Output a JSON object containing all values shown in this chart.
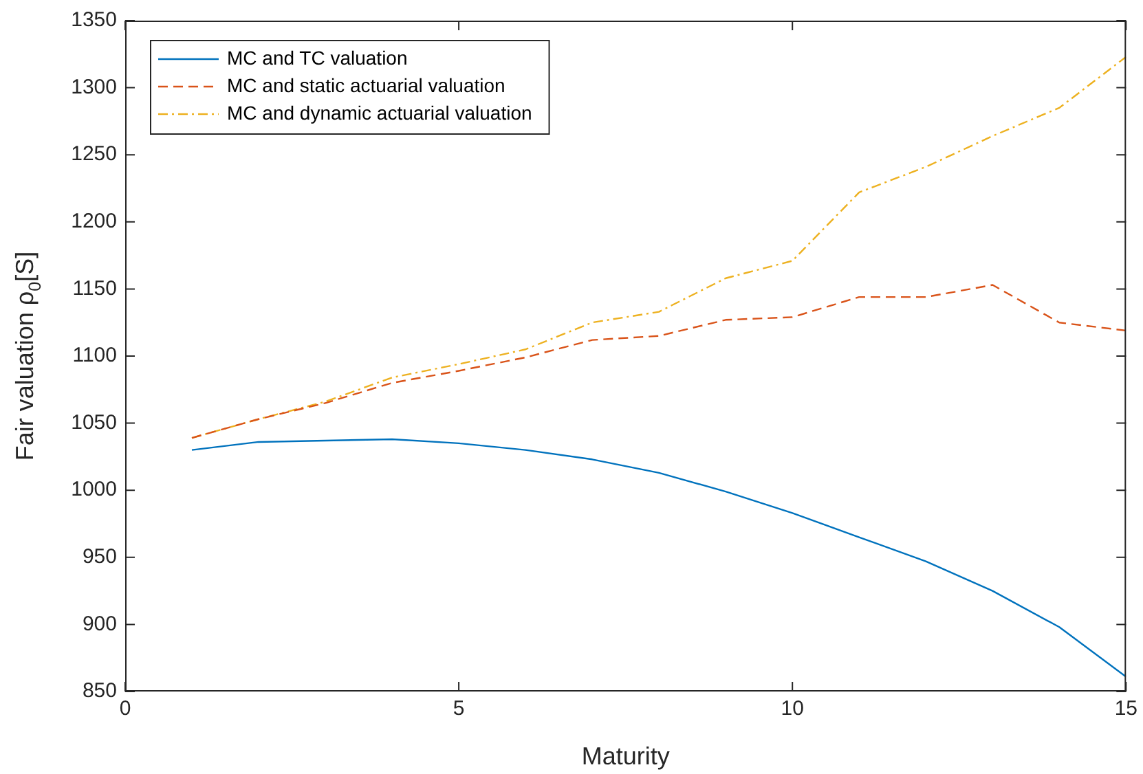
{
  "chart_data": {
    "type": "line",
    "xlabel": "Maturity",
    "ylabel": "Fair valuation ρ$_{0}$[S]",
    "x": [
      1,
      2,
      3,
      4,
      5,
      6,
      7,
      8,
      9,
      10,
      11,
      12,
      13,
      14,
      15
    ],
    "series": [
      {
        "name": "MC and TC valuation",
        "color": "#0072bd",
        "line_style": "solid",
        "values": [
          1030,
          1036,
          1037,
          1038,
          1035,
          1030,
          1023,
          1013,
          999,
          983,
          965,
          947,
          925,
          898,
          861
        ]
      },
      {
        "name": "MC and static actuarial valuation",
        "color": "#d95319",
        "line_style": "dashed",
        "values": [
          1039,
          1053,
          1065,
          1080,
          1089,
          1099,
          1112,
          1115,
          1127,
          1129,
          1144,
          1144,
          1153,
          1125,
          1119
        ]
      },
      {
        "name": "MC and dynamic actuarial valuation",
        "color": "#edb120",
        "line_style": "dashdot",
        "values": [
          1039,
          1053,
          1066,
          1084,
          1094,
          1105,
          1125,
          1133,
          1158,
          1171,
          1222,
          1241,
          1264,
          1285,
          1323
        ]
      }
    ],
    "xlim": [
      0,
      15
    ],
    "xticks": [
      0,
      5,
      10,
      15
    ],
    "ylim": [
      850,
      1350
    ],
    "yticks": [
      850,
      900,
      950,
      1000,
      1050,
      1100,
      1150,
      1200,
      1250,
      1300,
      1350
    ],
    "legend": "top left",
    "marker": "none"
  }
}
